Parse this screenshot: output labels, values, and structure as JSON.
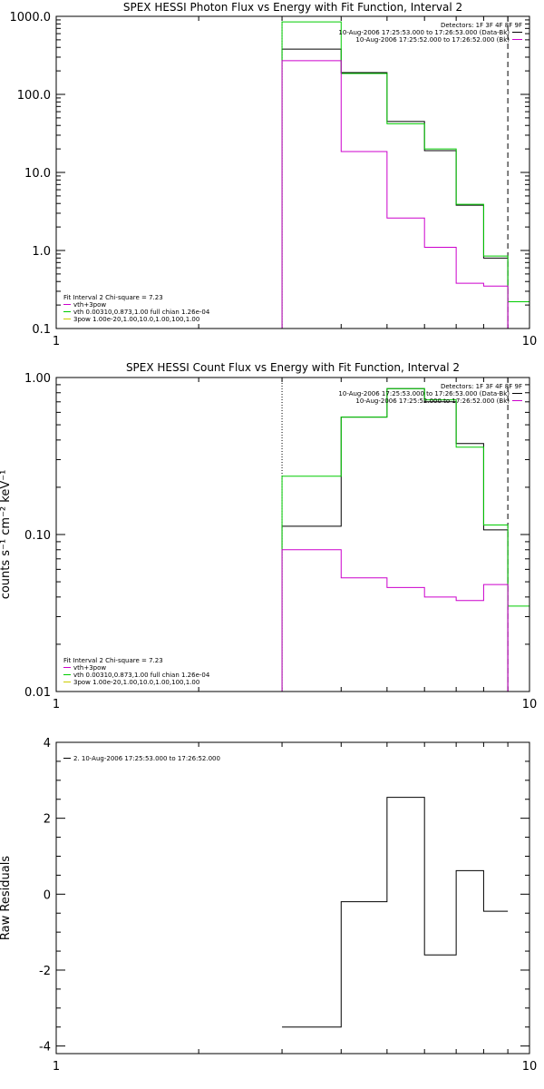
{
  "colors": {
    "data": "#000000",
    "fit_total": "#00cc00",
    "fit_thermal": "#cc00cc",
    "fit_pow": "#cccc00",
    "vline": "#000000"
  },
  "chart_data": [
    {
      "type": "line",
      "title": "SPEX HESSI Photon Flux vs Energy with Fit Function, Interval 2",
      "ylabel": "",
      "xscale": "log",
      "yscale": "log",
      "xlim": [
        1,
        10
      ],
      "ylim": [
        0.1,
        1000
      ],
      "xticks": [
        {
          "v": 1,
          "t": "1"
        },
        {
          "v": 10,
          "t": "10"
        }
      ],
      "yticks": [
        {
          "v": 0.1,
          "t": "0.1"
        },
        {
          "v": 1,
          "t": "1.0"
        },
        {
          "v": 10,
          "t": "10.0"
        },
        {
          "v": 100,
          "t": "100.0"
        },
        {
          "v": 1000,
          "t": "1000.0"
        }
      ],
      "edges": [
        3,
        4,
        5,
        6,
        7,
        8,
        9,
        10
      ],
      "series": [
        {
          "key": "data",
          "values": [
            380,
            190,
            45,
            19,
            3.8,
            0.8
          ]
        },
        {
          "key": "fit_total",
          "values": [
            850,
            185,
            42,
            20,
            3.9,
            0.85,
            0.22
          ]
        },
        {
          "key": "fit_thermal",
          "values": [
            270,
            18.5,
            2.6,
            1.1,
            0.38,
            0.35
          ]
        }
      ],
      "vlines": [
        {
          "x": 3,
          "style": "dotted"
        },
        {
          "x": 9,
          "style": "dashed"
        }
      ],
      "legend_tr": [
        {
          "text": "Detectors: 1F 3F 4F 8F 9F",
          "color": ""
        },
        {
          "text": "10-Aug-2006 17:25:53.000 to 17:26:53.000 (Data-Bk)",
          "color": "#000000"
        },
        {
          "text": "10-Aug-2006 17:25:52.000 to 17:26:52.000 (Bk)",
          "color": "#cc00cc"
        }
      ],
      "legend_bl": [
        {
          "text": "Fit Interval 2   Chi-square = 7.23",
          "color": ""
        },
        {
          "text": "vth+3pow",
          "color": "#cc00cc"
        },
        {
          "text": "vth 0.00310,0.873,1.00  full chian 1.26e-04",
          "color": "#00cc00"
        },
        {
          "text": "3pow 1.00e-20,1.00,10.0,1.00,100,1.00",
          "color": "#cccc00"
        }
      ]
    },
    {
      "type": "line",
      "title": "SPEX HESSI Count Flux vs Energy with Fit Function, Interval 2",
      "ylabel": "counts s⁻¹ cm⁻² keV⁻¹",
      "xscale": "log",
      "yscale": "log",
      "xlim": [
        1,
        10
      ],
      "ylim": [
        0.01,
        1
      ],
      "xticks": [
        {
          "v": 1,
          "t": "1"
        },
        {
          "v": 10,
          "t": "10"
        }
      ],
      "yticks": [
        {
          "v": 0.01,
          "t": "0.01"
        },
        {
          "v": 0.1,
          "t": "0.10"
        },
        {
          "v": 1,
          "t": "1.00"
        }
      ],
      "edges": [
        3,
        4,
        5,
        6,
        7,
        8,
        9,
        10
      ],
      "series": [
        {
          "key": "data",
          "values": [
            0.113,
            0.56,
            0.85,
            0.7,
            0.38,
            0.107
          ]
        },
        {
          "key": "fit_total",
          "values": [
            0.235,
            0.56,
            0.85,
            0.72,
            0.36,
            0.115,
            0.035
          ]
        },
        {
          "key": "fit_thermal",
          "values": [
            0.08,
            0.053,
            0.046,
            0.04,
            0.038,
            0.048
          ]
        }
      ],
      "vlines": [
        {
          "x": 3,
          "style": "dotted"
        },
        {
          "x": 9,
          "style": "dashed"
        }
      ],
      "legend_tr": [
        {
          "text": "Detectors: 1F 3F 4F 8F 9F",
          "color": ""
        },
        {
          "text": "10-Aug-2006 17:25:53.000 to 17:26:53.000 (Data-Bk)",
          "color": "#000000"
        },
        {
          "text": "10-Aug-2006 17:25:52.000 to 17:26:52.000 (Bk)",
          "color": "#cc00cc"
        }
      ],
      "legend_bl": [
        {
          "text": "Fit Interval 2   Chi-square = 7.23",
          "color": ""
        },
        {
          "text": "vth+3pow",
          "color": "#cc00cc"
        },
        {
          "text": "vth 0.00310,0.873,1.00  full chian 1.26e-04",
          "color": "#00cc00"
        },
        {
          "text": "3pow 1.00e-20,1.00,10.0,1.00,100,1.00",
          "color": "#cccc00"
        }
      ]
    },
    {
      "type": "line",
      "title": "",
      "ylabel": "Raw Residuals",
      "xscale": "log",
      "yscale": "linear",
      "xlim": [
        1,
        10
      ],
      "ylim": [
        -4.2,
        4
      ],
      "xticks": [
        {
          "v": 1,
          "t": "1"
        },
        {
          "v": 10,
          "t": "10"
        }
      ],
      "yticks": [
        {
          "v": -4,
          "t": "-4"
        },
        {
          "v": -2,
          "t": "-2"
        },
        {
          "v": 0,
          "t": "0"
        },
        {
          "v": 2,
          "t": "2"
        },
        {
          "v": 4,
          "t": "4"
        }
      ],
      "edges": [
        3,
        4,
        5,
        6,
        7,
        8,
        9
      ],
      "series": [
        {
          "key": "data",
          "values": [
            -3.5,
            -0.2,
            2.55,
            -1.6,
            0.62,
            -0.45
          ]
        }
      ],
      "vlines": [],
      "legend_tl": [
        {
          "text": "2. 10-Aug-2006 17:25:53.000 to 17:26:52.000",
          "color": "#000000"
        }
      ]
    }
  ]
}
